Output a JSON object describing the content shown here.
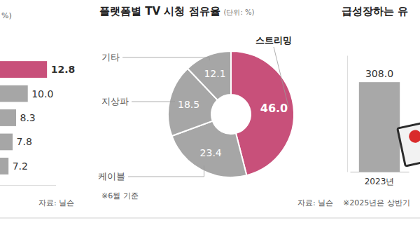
{
  "chart_data": [
    {
      "type": "bar",
      "orientation": "horizontal",
      "title": "%)",
      "annotations": [
        "자료: 닐슨"
      ],
      "categories": [
        null,
        null,
        null,
        null,
        null
      ],
      "values": [
        12.8,
        10.0,
        8.3,
        7.8,
        7.2
      ],
      "value_labels": [
        "12.8",
        "10.0",
        "8.3",
        "7.8",
        "7.2"
      ],
      "colors": [
        "#c8507a",
        "#a6a6a6",
        "#a6a6a6",
        "#a6a6a6",
        "#a6a6a6"
      ],
      "xlim": [
        0,
        14
      ],
      "data_labels": true,
      "tick_labels": false
    },
    {
      "type": "pie",
      "title": "플랫폼별 TV 시청 점유율",
      "subtitle": "(단위: %)",
      "categories": [
        "스트리밍",
        "케이블",
        "지상파",
        "기타"
      ],
      "values": [
        46.0,
        23.4,
        18.5,
        12.1
      ],
      "value_labels": [
        "46.0",
        "23.4",
        "18.5",
        "12.1"
      ],
      "colors": [
        "#c8507a",
        "#a6a6a6",
        "#a6a6a6",
        "#a6a6a6"
      ],
      "data_labels": true,
      "annotations": [
        "※6월 기준",
        "자료: 닐슨"
      ]
    },
    {
      "type": "bar",
      "title": "급성장하는 유",
      "categories": [
        "2023년"
      ],
      "values": [
        308.0
      ],
      "value_labels": [
        "308.0"
      ],
      "color": "#a8a8a8",
      "ylim": [
        0,
        400
      ],
      "data_labels": true,
      "tick_labels": "x",
      "annotations": [
        "※2025년은 상반기"
      ]
    }
  ]
}
